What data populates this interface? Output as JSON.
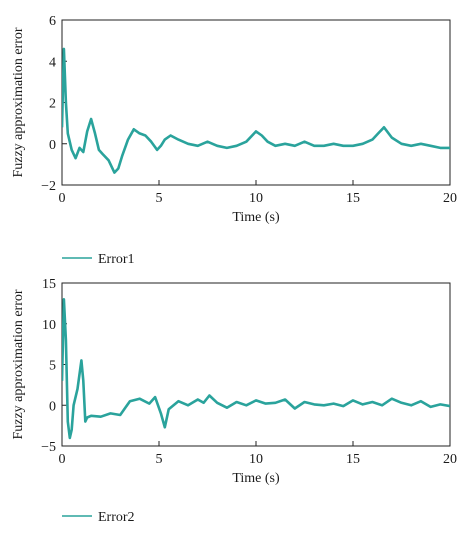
{
  "colors": {
    "series": "#2aa39c",
    "axis": "#222222"
  },
  "chart_data": [
    {
      "type": "line",
      "xlabel": "Time (s)",
      "ylabel": "Fuzzy approximation error",
      "xlim": [
        0,
        20
      ],
      "ylim": [
        -2,
        6
      ],
      "xticks": [
        0,
        5,
        10,
        15,
        20
      ],
      "yticks": [
        -2,
        0,
        2,
        4,
        6
      ],
      "legend_position": "bottom-left, below plot",
      "series": [
        {
          "name": "Error1",
          "x": [
            0,
            0.1,
            0.2,
            0.3,
            0.5,
            0.7,
            0.9,
            1.1,
            1.3,
            1.5,
            1.7,
            1.9,
            2.1,
            2.4,
            2.7,
            2.9,
            3.1,
            3.4,
            3.7,
            4.0,
            4.3,
            4.6,
            4.9,
            5.1,
            5.3,
            5.6,
            6.0,
            6.5,
            7.0,
            7.5,
            8.0,
            8.5,
            9.0,
            9.5,
            10.0,
            10.3,
            10.6,
            11.0,
            11.5,
            12.0,
            12.5,
            13.0,
            13.5,
            14.0,
            14.5,
            15.0,
            15.5,
            16.0,
            16.3,
            16.6,
            17.0,
            17.5,
            18.0,
            18.5,
            19.0,
            19.5,
            20.0
          ],
          "y": [
            0.8,
            4.6,
            2.0,
            0.5,
            -0.3,
            -0.7,
            -0.2,
            -0.4,
            0.6,
            1.2,
            0.5,
            -0.3,
            -0.5,
            -0.8,
            -1.4,
            -1.2,
            -0.6,
            0.2,
            0.7,
            0.5,
            0.4,
            0.1,
            -0.3,
            -0.1,
            0.2,
            0.4,
            0.2,
            0.0,
            -0.1,
            0.1,
            -0.1,
            -0.2,
            -0.1,
            0.1,
            0.6,
            0.4,
            0.1,
            -0.1,
            0.0,
            -0.1,
            0.1,
            -0.1,
            -0.1,
            0.0,
            -0.1,
            -0.1,
            0.0,
            0.2,
            0.5,
            0.8,
            0.3,
            0.0,
            -0.1,
            0.0,
            -0.1,
            -0.2,
            -0.2
          ]
        }
      ]
    },
    {
      "type": "line",
      "xlabel": "Time (s)",
      "ylabel": "Fuzzy approximation error",
      "xlim": [
        0,
        20
      ],
      "ylim": [
        -5,
        15
      ],
      "xticks": [
        0,
        5,
        10,
        15,
        20
      ],
      "yticks": [
        -5,
        0,
        5,
        10,
        15
      ],
      "legend_position": "bottom-left, below plot",
      "series": [
        {
          "name": "Error2",
          "x": [
            0,
            0.1,
            0.2,
            0.3,
            0.4,
            0.5,
            0.6,
            0.8,
            1.0,
            1.1,
            1.2,
            1.3,
            1.5,
            2.0,
            2.5,
            3.0,
            3.5,
            4.0,
            4.5,
            4.8,
            5.1,
            5.3,
            5.5,
            6.0,
            6.5,
            7.0,
            7.3,
            7.6,
            8.0,
            8.5,
            9.0,
            9.5,
            10.0,
            10.5,
            11.0,
            11.5,
            12.0,
            12.5,
            13.0,
            13.5,
            14.0,
            14.5,
            15.0,
            15.5,
            16.0,
            16.5,
            17.0,
            17.5,
            18.0,
            18.5,
            19.0,
            19.5,
            20.0
          ],
          "y": [
            3.0,
            13.0,
            8.0,
            -2.0,
            -4.0,
            -3.0,
            0.0,
            2.0,
            5.5,
            3.0,
            -2.0,
            -1.5,
            -1.3,
            -1.4,
            -1.0,
            -1.2,
            0.5,
            0.8,
            0.2,
            1.0,
            -1.0,
            -2.7,
            -0.5,
            0.5,
            0.0,
            0.7,
            0.3,
            1.2,
            0.3,
            -0.3,
            0.4,
            0.0,
            0.6,
            0.2,
            0.3,
            0.7,
            -0.4,
            0.4,
            0.1,
            0.0,
            0.2,
            -0.1,
            0.6,
            0.1,
            0.4,
            0.0,
            0.8,
            0.3,
            0.0,
            0.5,
            -0.2,
            0.1,
            -0.1
          ]
        }
      ]
    }
  ]
}
